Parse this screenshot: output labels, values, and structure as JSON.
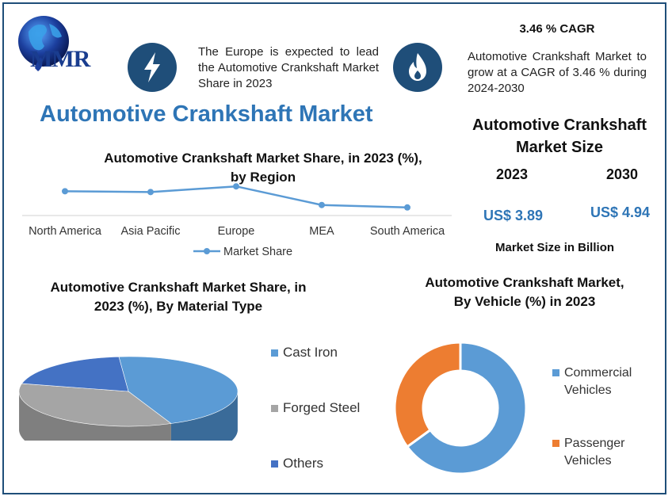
{
  "logo": {
    "text": "MMR"
  },
  "europe_note": "The Europe is expected to lead the Automotive Crankshaft Market Share in 2023",
  "cagr": {
    "title": "3.46 % CAGR",
    "text": "Automotive Crankshaft Market to grow at a CAGR of 3.46 % during 2024-2030"
  },
  "main_title": "Automotive Crankshaft Market",
  "market_size": {
    "title_line1": "Automotive Crankshaft",
    "title_line2": "Market Size",
    "year1": "2023",
    "year2": "2030",
    "value1": "US$ 3.89",
    "value2": "US$ 4.94",
    "unit_note": "Market Size in Billion"
  },
  "icons": {
    "left": "lightning-icon",
    "right": "flame-icon",
    "logo": "globe-icon"
  },
  "colors": {
    "dark_blue": "#1f4e79",
    "accent_blue": "#2e75b6",
    "line_blue": "#5b9bd5",
    "orange": "#ed7d31",
    "gray": "#a5a5a5",
    "navy": "#4472c4"
  },
  "chart_data": [
    {
      "type": "line",
      "title_line1": "Automotive Crankshaft Market Share, in 2023 (%),",
      "title_line2": "by Region",
      "categories": [
        "North America",
        "Asia Pacific",
        "Europe",
        "MEA",
        "South America"
      ],
      "series": [
        {
          "name": "Market Share",
          "values": [
            30,
            29,
            36,
            13,
            10
          ]
        }
      ],
      "ylim": [
        0,
        45
      ],
      "grid": false,
      "legend": "bottom"
    },
    {
      "type": "pie",
      "title_line1": "Automotive Crankshaft Market Share, in",
      "title_line2": "2023 (%), By Material Type",
      "categories": [
        "Cast Iron",
        "Forged Steel",
        "Others"
      ],
      "values": [
        45,
        35,
        20
      ],
      "colors": [
        "#5b9bd5",
        "#a5a5a5",
        "#4472c4"
      ],
      "legend": "right"
    },
    {
      "type": "pie",
      "title_line1": "Automotive Crankshaft Market,",
      "title_line2": "By Vehicle (%) in 2023",
      "categories": [
        "Commercial",
        "Passenger"
      ],
      "categories_line2": [
        "Vehicles",
        "Vehicles"
      ],
      "values": [
        65,
        35
      ],
      "colors": [
        "#5b9bd5",
        "#ed7d31"
      ],
      "legend": "right"
    }
  ]
}
